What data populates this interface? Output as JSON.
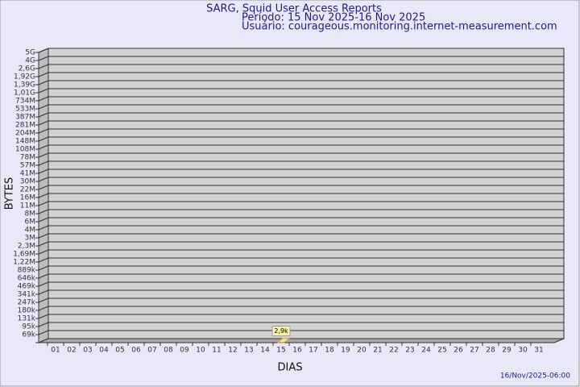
{
  "chart_data": {
    "type": "bar",
    "title": "SARG, Squid User Access Reports",
    "subtitle": "Período: 15 Nov 2025-16 Nov 2025",
    "user": "Usuário: courageous.monitoring.internet-measurement.com",
    "footer": "16/Nov/2025-06:00",
    "x_label": "DIAS",
    "y_label": "BYTES",
    "categories": [
      "01",
      "02",
      "03",
      "04",
      "05",
      "06",
      "07",
      "08",
      "09",
      "10",
      "11",
      "12",
      "13",
      "14",
      "15",
      "16",
      "17",
      "18",
      "19",
      "20",
      "21",
      "22",
      "23",
      "24",
      "25",
      "26",
      "27",
      "28",
      "29",
      "30",
      "31"
    ],
    "values": [
      null,
      null,
      null,
      null,
      null,
      null,
      null,
      null,
      null,
      null,
      null,
      null,
      null,
      null,
      2900,
      null,
      null,
      null,
      null,
      null,
      null,
      null,
      null,
      null,
      null,
      null,
      null,
      null,
      null,
      null,
      null
    ],
    "value_labels": [
      null,
      null,
      null,
      null,
      null,
      null,
      null,
      null,
      null,
      null,
      null,
      null,
      null,
      null,
      "2,9k",
      null,
      null,
      null,
      null,
      null,
      null,
      null,
      null,
      null,
      null,
      null,
      null,
      null,
      null,
      null,
      null
    ],
    "color": "#f5e79a",
    "ylim": [
      0,
      5000000000
    ],
    "yticks": [
      {
        "value": 5000000000,
        "label": "5G"
      },
      {
        "value": 4000000000,
        "label": "4G"
      },
      {
        "value": 2600000000,
        "label": "2,6G"
      },
      {
        "value": 1920000000,
        "label": "1,92G"
      },
      {
        "value": 1390000000,
        "label": "1,39G"
      },
      {
        "value": 1010000000,
        "label": "1,01G"
      },
      {
        "value": 734000000,
        "label": "734M"
      },
      {
        "value": 533000000,
        "label": "533M"
      },
      {
        "value": 387000000,
        "label": "387M"
      },
      {
        "value": 281000000,
        "label": "281M"
      },
      {
        "value": 204000000,
        "label": "204M"
      },
      {
        "value": 148000000,
        "label": "148M"
      },
      {
        "value": 108000000,
        "label": "108M"
      },
      {
        "value": 78000000,
        "label": "78M"
      },
      {
        "value": 57000000,
        "label": "57M"
      },
      {
        "value": 41000000,
        "label": "41M"
      },
      {
        "value": 30000000,
        "label": "30M"
      },
      {
        "value": 22000000,
        "label": "22M"
      },
      {
        "value": 16000000,
        "label": "16M"
      },
      {
        "value": 11000000,
        "label": "11M"
      },
      {
        "value": 8000000,
        "label": "8M"
      },
      {
        "value": 6000000,
        "label": "6M"
      },
      {
        "value": 4000000,
        "label": "4M"
      },
      {
        "value": 3000000,
        "label": "3M"
      },
      {
        "value": 2300000,
        "label": "2,3M"
      },
      {
        "value": 1690000,
        "label": "1,69M"
      },
      {
        "value": 1220000,
        "label": "1,22M"
      },
      {
        "value": 889000,
        "label": "889k"
      },
      {
        "value": 646000,
        "label": "646k"
      },
      {
        "value": 469000,
        "label": "469k"
      },
      {
        "value": 341000,
        "label": "341k"
      },
      {
        "value": 247000,
        "label": "247k"
      },
      {
        "value": 180000,
        "label": "180k"
      },
      {
        "value": 131000,
        "label": "131k"
      },
      {
        "value": 95000,
        "label": "95k"
      },
      {
        "value": 69000,
        "label": "69k"
      }
    ],
    "grid": true
  }
}
